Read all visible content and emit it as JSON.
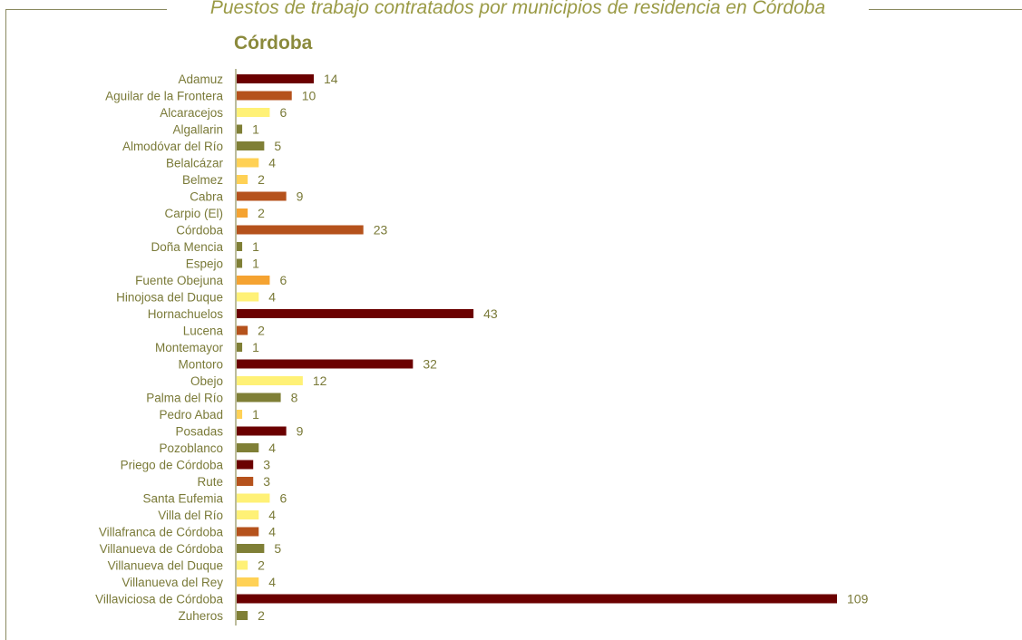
{
  "frame": {
    "title": "Puestos de trabajo contratados por municipios de residencia en Córdoba"
  },
  "chart_data": {
    "type": "bar",
    "orientation": "horizontal",
    "title": "Córdoba",
    "xlabel": "",
    "ylabel": "",
    "xlim": [
      0,
      109
    ],
    "grid": false,
    "legend": "none",
    "categories": [
      "Adamuz",
      "Aguilar de la Frontera",
      "Alcaracejos",
      "Algallarin",
      "Almodóvar del Río",
      "Belalcázar",
      "Belmez",
      "Cabra",
      "Carpio (El)",
      "Córdoba",
      "Doña Mencia",
      "Espejo",
      "Fuente Obejuna",
      "Hinojosa del Duque",
      "Hornachuelos",
      "Lucena",
      "Montemayor",
      "Montoro",
      "Obejo",
      "Palma del Río",
      "Pedro Abad",
      "Posadas",
      "Pozoblanco",
      "Priego de Córdoba",
      "Rute",
      "Santa Eufemia",
      "Villa del Río",
      "Villafranca de Córdoba",
      "Villanueva de Córdoba",
      "Villanueva del Duque",
      "Villanueva del Rey",
      "Villaviciosa de Córdoba",
      "Zuheros"
    ],
    "values": [
      14,
      10,
      6,
      1,
      5,
      4,
      2,
      9,
      2,
      23,
      1,
      1,
      6,
      4,
      43,
      2,
      1,
      32,
      12,
      8,
      1,
      9,
      4,
      3,
      3,
      6,
      4,
      4,
      5,
      2,
      4,
      109,
      2
    ],
    "colors": [
      "#6b0000",
      "#b5521c",
      "#fff176",
      "#7f7f36",
      "#7f7f36",
      "#ffd155",
      "#ffd155",
      "#b5521c",
      "#f5a331",
      "#b5521c",
      "#7f7f36",
      "#7f7f36",
      "#f5a331",
      "#fff176",
      "#6b0000",
      "#b5521c",
      "#7f7f36",
      "#6b0000",
      "#fff176",
      "#7f7f36",
      "#ffd155",
      "#6b0000",
      "#7f7f36",
      "#6b0000",
      "#b5521c",
      "#fff176",
      "#fff176",
      "#b5521c",
      "#7f7f36",
      "#fff176",
      "#ffd155",
      "#6b0000",
      "#7f7f36"
    ]
  }
}
